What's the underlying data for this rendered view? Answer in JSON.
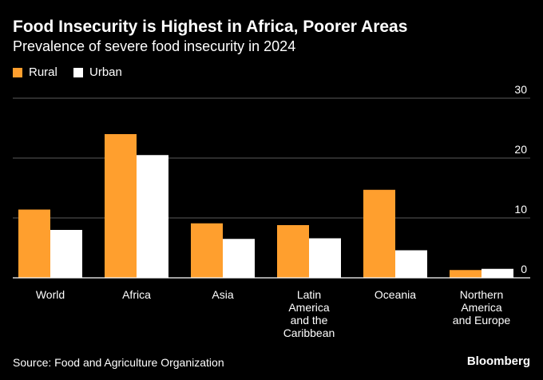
{
  "chart_data": {
    "type": "bar",
    "title": "Food Insecurity is Highest in Africa, Poorer Areas",
    "subtitle": "Prevalence of severe food insecurity in 2024",
    "categories": [
      "World",
      "Africa",
      "Asia",
      "Latin America and the Caribbean",
      "Oceania",
      "Northern America and Europe"
    ],
    "category_label_lines": [
      [
        "World"
      ],
      [
        "Africa"
      ],
      [
        "Asia"
      ],
      [
        "Latin",
        "America",
        "and the",
        "Caribbean"
      ],
      [
        "Oceania"
      ],
      [
        "Northern",
        "America",
        "and Europe"
      ]
    ],
    "series": [
      {
        "name": "Rural",
        "color": "#ff9f2e",
        "values": [
          11.4,
          24.0,
          9.1,
          8.8,
          14.7,
          1.3
        ]
      },
      {
        "name": "Urban",
        "color": "#ffffff",
        "values": [
          8.0,
          20.5,
          6.5,
          6.6,
          4.6,
          1.5
        ]
      }
    ],
    "ylim": [
      0,
      30
    ],
    "yticks": [
      0,
      10,
      20,
      30
    ],
    "y_axis_side": "right",
    "grid": true,
    "legend_position": "top-left"
  },
  "footer": {
    "source": "Source: Food and Agriculture Organization",
    "brand": "Bloomberg"
  }
}
